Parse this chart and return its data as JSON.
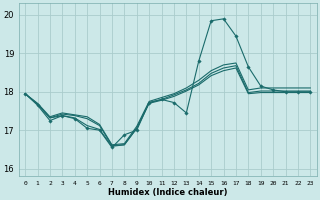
{
  "xlabel": "Humidex (Indice chaleur)",
  "bg_color": "#cce8e8",
  "grid_color": "#aacccc",
  "line_color": "#1a6b6b",
  "xlim": [
    -0.5,
    23.5
  ],
  "ylim": [
    15.8,
    20.3
  ],
  "yticks": [
    16,
    17,
    18,
    19,
    20
  ],
  "xticks": [
    0,
    1,
    2,
    3,
    4,
    5,
    6,
    7,
    8,
    9,
    10,
    11,
    12,
    13,
    14,
    15,
    16,
    17,
    18,
    19,
    20,
    21,
    22,
    23
  ],
  "series": [
    {
      "x": [
        0,
        1,
        2,
        3,
        4,
        5,
        6,
        7,
        8,
        9,
        10,
        11,
        12,
        13,
        14,
        15,
        16,
        17,
        18,
        19,
        20,
        21,
        22,
        23
      ],
      "y": [
        17.95,
        17.7,
        17.35,
        17.45,
        17.4,
        17.35,
        17.15,
        16.62,
        16.65,
        17.1,
        17.75,
        17.85,
        17.95,
        18.1,
        18.3,
        18.55,
        18.7,
        18.75,
        18.05,
        18.1,
        18.1,
        18.1,
        18.1,
        18.1
      ],
      "marker": false
    },
    {
      "x": [
        0,
        1,
        2,
        3,
        4,
        5,
        6,
        7,
        8,
        9,
        10,
        11,
        12,
        13,
        14,
        15,
        16,
        17,
        18,
        19,
        20,
        21,
        22,
        23
      ],
      "y": [
        17.95,
        17.68,
        17.32,
        17.42,
        17.38,
        17.3,
        17.12,
        16.6,
        16.62,
        17.05,
        17.72,
        17.8,
        17.92,
        18.05,
        18.22,
        18.48,
        18.62,
        18.68,
        17.98,
        18.02,
        18.02,
        18.02,
        18.02,
        18.02
      ],
      "marker": false
    },
    {
      "x": [
        0,
        1,
        2,
        3,
        4,
        5,
        6,
        7,
        8,
        9,
        10,
        11,
        12,
        13,
        14,
        15,
        16,
        17,
        18,
        19,
        20,
        21,
        22,
        23
      ],
      "y": [
        17.95,
        17.68,
        17.32,
        17.38,
        17.32,
        17.12,
        17.02,
        16.58,
        16.62,
        17.05,
        17.7,
        17.78,
        17.88,
        18.02,
        18.18,
        18.42,
        18.55,
        18.62,
        17.95,
        17.98,
        17.98,
        17.98,
        17.98,
        17.98
      ],
      "marker": false
    },
    {
      "x": [
        0,
        1,
        2,
        3,
        4,
        5,
        6,
        7,
        8,
        9,
        10,
        11,
        12,
        13,
        14,
        15,
        16,
        17,
        18,
        19,
        20,
        21,
        22,
        23
      ],
      "y": [
        17.95,
        17.65,
        17.25,
        17.38,
        17.3,
        17.05,
        17.0,
        16.55,
        16.88,
        17.0,
        17.72,
        17.8,
        17.72,
        17.45,
        18.8,
        19.85,
        19.9,
        19.45,
        18.65,
        18.15,
        18.05,
        18.0,
        18.0,
        18.0
      ],
      "marker": true
    }
  ]
}
